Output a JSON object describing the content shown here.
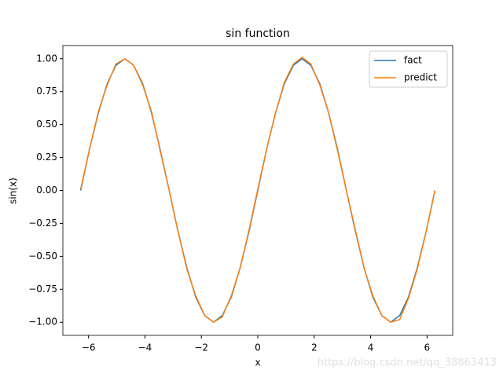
{
  "chart_data": {
    "type": "line",
    "title": "sin function",
    "x_label": "x",
    "y_label": "sin(x)",
    "x": [
      -6.28,
      -5.97,
      -5.65,
      -5.34,
      -5.03,
      -4.71,
      -4.4,
      -4.08,
      -3.77,
      -3.46,
      -3.14,
      -2.83,
      -2.51,
      -2.2,
      -1.88,
      -1.57,
      -1.26,
      -0.94,
      -0.63,
      -0.31,
      0,
      0.31,
      0.63,
      0.94,
      1.26,
      1.57,
      1.88,
      2.2,
      2.51,
      2.83,
      3.14,
      3.46,
      3.77,
      4.08,
      4.4,
      4.71,
      5.03,
      5.34,
      5.65,
      5.97,
      6.28
    ],
    "series": [
      {
        "name": "fact",
        "color": "#1f77b4",
        "values": [
          0,
          0.31,
          0.59,
          0.81,
          0.95,
          1,
          0.95,
          0.81,
          0.59,
          0.31,
          0,
          -0.31,
          -0.59,
          -0.81,
          -0.95,
          -1,
          -0.95,
          -0.81,
          -0.59,
          -0.31,
          0,
          0.31,
          0.59,
          0.81,
          0.95,
          1,
          0.95,
          0.81,
          0.59,
          0.31,
          0,
          -0.31,
          -0.59,
          -0.81,
          -0.95,
          -1,
          -0.95,
          -0.81,
          -0.59,
          -0.31,
          0
        ]
      },
      {
        "name": "predict",
        "color": "#ff7f0e",
        "values": [
          0.01,
          0.31,
          0.6,
          0.8,
          0.96,
          1,
          0.95,
          0.8,
          0.6,
          0.3,
          0,
          -0.31,
          -0.6,
          -0.8,
          -0.95,
          -1,
          -0.96,
          -0.8,
          -0.59,
          -0.3,
          0.01,
          0.31,
          0.59,
          0.82,
          0.96,
          1.01,
          0.96,
          0.8,
          0.59,
          0.3,
          0,
          -0.3,
          -0.59,
          -0.8,
          -0.95,
          -1,
          -0.98,
          -0.82,
          -0.6,
          -0.31,
          0
        ]
      }
    ],
    "xlim": [
      -6.91,
      6.91
    ],
    "ylim": [
      -1.1,
      1.1
    ],
    "xticks": [
      {
        "value": -6,
        "label": "−6"
      },
      {
        "value": -4,
        "label": "−4"
      },
      {
        "value": -2,
        "label": "−2"
      },
      0,
      2,
      4,
      6
    ],
    "yticks": [
      {
        "value": -1,
        "label": "−1.00"
      },
      {
        "value": -0.75,
        "label": "−0.75"
      },
      {
        "value": -0.5,
        "label": "−0.50"
      },
      {
        "value": -0.25,
        "label": "−0.25"
      },
      {
        "value": 0,
        "label": "0.00"
      },
      {
        "value": 0.25,
        "label": "0.25"
      },
      {
        "value": 0.5,
        "label": "0.50"
      },
      {
        "value": 0.75,
        "label": "0.75"
      },
      {
        "value": 1,
        "label": "1.00"
      }
    ],
    "legend": "upper right",
    "grid": false
  },
  "watermark": "https://blog.csdn.net/qq_38863413"
}
